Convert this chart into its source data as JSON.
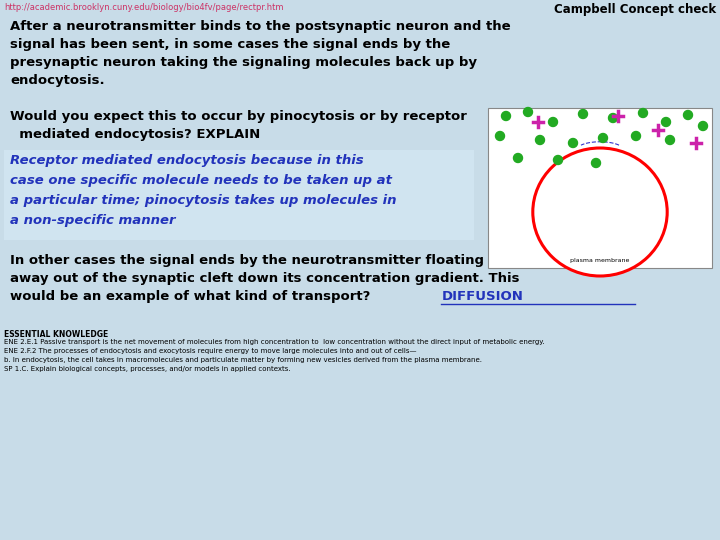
{
  "background_color": "#c8dce8",
  "header_url": "http://academic.brooklyn.cuny.edu/biology/bio4fv/page/rectpr.htm",
  "header_right": "Campbell Concept check",
  "para1_lines": [
    "After a neurotransmitter binds to the postsynaptic neuron and the",
    "signal has been sent, in some cases the signal ends by the",
    "presynaptic neuron taking the signaling molecules back up by",
    "endocytosis."
  ],
  "para2_q_lines": [
    "Would you expect this to occur by pinocytosis or by receptor",
    "  mediated endocytosis? EXPLAIN"
  ],
  "para2_a_lines": [
    "Receptor mediated endocytosis because in this",
    "case one specific molecule needs to be taken up at",
    "a particular time; pinocytosis takes up molecules in",
    "a non-specific manner"
  ],
  "para3_lines": [
    "In other cases the signal ends by the neurotransmitter floating",
    "away out of the synaptic cleft down its concentration gradient. This",
    "would be an example of what kind of transport?"
  ],
  "para3_answer": "DIFFUSION",
  "essential_title": "ESSENTIAL KNOWLEDGE",
  "essential_lines": [
    "ENE 2.E.1 Passive transport is the net movement of molecules from high concentration to  low concentration without the direct input of metabolic energy.",
    "ENE 2.F.2 The processes of endocytosis and exocytosis require energy to move large molecules into and out of cells—",
    "b. In endocytosis, the cell takes in macromolecules and particulate matter by forming new vesicles derived from the plasma membrane.",
    "SP 1.C. Explain biological concepts, processes, and/or models in applied contexts."
  ],
  "answer_box_color": "#d0e4f0",
  "answer_text_color": "#2233bb",
  "diffusion_color": "#2233bb",
  "url_color": "#cc3366",
  "black": "#000000"
}
